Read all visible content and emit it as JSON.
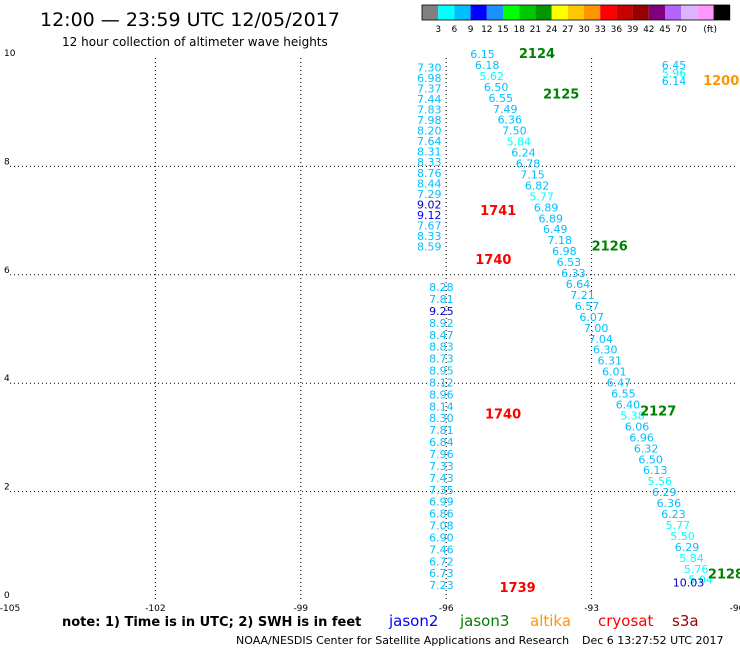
{
  "header": {
    "title": "12:00 — 23:59 UTC 12/05/2017",
    "subtitle": "12 hour collection of altimeter wave heights"
  },
  "colorbar": {
    "unit": "(ft)",
    "colors": [
      "#808080",
      "#00ffff",
      "#00bfff",
      "#0000ff",
      "#1e90ff",
      "#00ff00",
      "#00c800",
      "#009600",
      "#ffff00",
      "#ffc800",
      "#ff9600",
      "#ff0000",
      "#c80000",
      "#960000",
      "#800080",
      "#b464ff",
      "#dcb4ff",
      "#ff96ff",
      "#000000"
    ],
    "labels": [
      "3",
      "6",
      "9",
      "12",
      "15",
      "18",
      "21",
      "24",
      "27",
      "30",
      "33",
      "36",
      "39",
      "42",
      "45",
      "70"
    ]
  },
  "chart_data": {
    "type": "scatter",
    "xlim": [
      -105,
      -90
    ],
    "ylim": [
      0,
      10
    ],
    "x_ticks": [
      "-105",
      "-102",
      "-99",
      "-96",
      "-93",
      "-90"
    ],
    "y_ticks": [
      "0",
      "2",
      "4",
      "6",
      "8",
      "10"
    ],
    "grid": true,
    "tracks": [
      {
        "x": -96.35,
        "y_start": 9.75,
        "y_end": 6.45,
        "values": [
          "7.30",
          "6.98",
          "7.37",
          "7.44",
          "7.83",
          "7.98",
          "8.20",
          "7.64",
          "8.31",
          "8.33",
          "8.76",
          "8.44",
          "7.29",
          "9.02",
          "9.12",
          "7.67",
          "8.33",
          "8.59"
        ],
        "colors": [
          "#00bfff",
          "#00bfff",
          "#00bfff",
          "#00bfff",
          "#00bfff",
          "#00bfff",
          "#00bfff",
          "#00bfff",
          "#00bfff",
          "#00bfff",
          "#00bfff",
          "#00bfff",
          "#00bfff",
          "#0000c8",
          "#0000ff",
          "#00bfff",
          "#00bfff",
          "#00bfff"
        ]
      },
      {
        "x": -96.1,
        "y_start": 5.7,
        "y_end": 0.2,
        "values": [
          "8.28",
          "7.81",
          "9.25",
          "8.92",
          "8.47",
          "8.83",
          "8.73",
          "8.95",
          "8.12",
          "8.96",
          "8.14",
          "8.30",
          "7.81",
          "6.84",
          "7.96",
          "7.33",
          "7.43",
          "7.35",
          "6.99",
          "6.86",
          "7.08",
          "6.90",
          "7.46",
          "6.72",
          "6.73",
          "7.23"
        ],
        "colors": [
          "#00bfff",
          "#00bfff",
          "#0000c8",
          "#00bfff",
          "#00bfff",
          "#00bfff",
          "#00bfff",
          "#00bfff",
          "#00bfff",
          "#00bfff",
          "#00bfff",
          "#00bfff",
          "#00bfff",
          "#00bfff",
          "#00bfff",
          "#00bfff",
          "#00bfff",
          "#00bfff",
          "#00bfff",
          "#00bfff",
          "#00bfff",
          "#00bfff",
          "#00bfff",
          "#00bfff",
          "#00bfff",
          "#00bfff"
        ]
      },
      {
        "x_start": -95.25,
        "x_end": -90.75,
        "y_start": 10.0,
        "y_end": 0.3,
        "values": [
          "6.15",
          "6.18",
          "5.62",
          "6.50",
          "6.55",
          "7.49",
          "6.36",
          "7.50",
          "5.84",
          "6.24",
          "6.78",
          "7.15",
          "6.82",
          "5.77",
          "6.89",
          "6.89",
          "6.49",
          "7.18",
          "6.98",
          "6.53",
          "6.33",
          "6.64",
          "7.21",
          "6.57",
          "6.07",
          "7.00",
          "7.04",
          "6.30",
          "6.31",
          "6.01",
          "6.47",
          "6.55",
          "6.40",
          "5.38",
          "6.06",
          "6.96",
          "6.32",
          "6.50",
          "6.13",
          "5.56",
          "6.29",
          "6.36",
          "6.23",
          "5.77",
          "5.50",
          "6.29",
          "5.84",
          "5.76",
          "5.04"
        ],
        "colors": [
          "#00bfff",
          "#00bfff",
          "#00ffff",
          "#00bfff",
          "#00bfff",
          "#00bfff",
          "#00bfff",
          "#00bfff",
          "#00ffff",
          "#00bfff",
          "#00bfff",
          "#00bfff",
          "#00bfff",
          "#00ffff",
          "#00bfff",
          "#00bfff",
          "#00bfff",
          "#00bfff",
          "#00bfff",
          "#00bfff",
          "#00bfff",
          "#00bfff",
          "#00bfff",
          "#00bfff",
          "#00bfff",
          "#00bfff",
          "#00bfff",
          "#00bfff",
          "#00bfff",
          "#00bfff",
          "#00bfff",
          "#00bfff",
          "#00bfff",
          "#00ffff",
          "#00bfff",
          "#00bfff",
          "#00bfff",
          "#00bfff",
          "#00bfff",
          "#00ffff",
          "#00bfff",
          "#00bfff",
          "#00bfff",
          "#00ffff",
          "#00ffff",
          "#00bfff",
          "#00ffff",
          "#00ffff",
          "#00ffff"
        ]
      },
      {
        "x": -91.3,
        "y_start": 9.8,
        "y_end": 9.5,
        "values": [
          "6.45",
          "5.96",
          "6.14"
        ],
        "colors": [
          "#00bfff",
          "#00ffff",
          "#00bfff"
        ]
      },
      {
        "x": -91.0,
        "y_start": 0.25,
        "y_end": 0.25,
        "values": [
          "10.03"
        ],
        "colors": [
          "#0000c8"
        ]
      }
    ],
    "annotations": [
      {
        "text": "2124",
        "x": -94.5,
        "y": 10.0,
        "color": "#008000"
      },
      {
        "text": "2125",
        "x": -94.0,
        "y": 9.25,
        "color": "#008000"
      },
      {
        "text": "1741",
        "x": -95.3,
        "y": 7.1,
        "color": "#ff0000"
      },
      {
        "text": "1740",
        "x": -95.4,
        "y": 6.2,
        "color": "#ff0000"
      },
      {
        "text": "2126",
        "x": -93.0,
        "y": 6.45,
        "color": "#008000"
      },
      {
        "text": "1740",
        "x": -95.2,
        "y": 3.35,
        "color": "#ff0000"
      },
      {
        "text": "2127",
        "x": -92.0,
        "y": 3.4,
        "color": "#008000"
      },
      {
        "text": "2128",
        "x": -90.6,
        "y": 0.4,
        "color": "#008000"
      },
      {
        "text": "1739",
        "x": -94.9,
        "y": 0.15,
        "color": "#ff0000"
      },
      {
        "text": "1200",
        "x": -90.7,
        "y": 9.5,
        "color": "#ff9600"
      }
    ]
  },
  "legend": {
    "note": "note:  1) Time is in UTC;  2) SWH is in feet",
    "items": [
      {
        "name": "jason2",
        "color": "#0000ff"
      },
      {
        "name": "jason3",
        "color": "#008000"
      },
      {
        "name": "altika",
        "color": "#ff9600"
      },
      {
        "name": "cryosat",
        "color": "#ff0000"
      },
      {
        "name": "s3a",
        "color": "#960000"
      }
    ]
  },
  "footer": {
    "credit": "NOAA/NESDIS Center for Satellite Applications and Research",
    "timestamp": "Dec  6 13:27:52 UTC 2017"
  }
}
